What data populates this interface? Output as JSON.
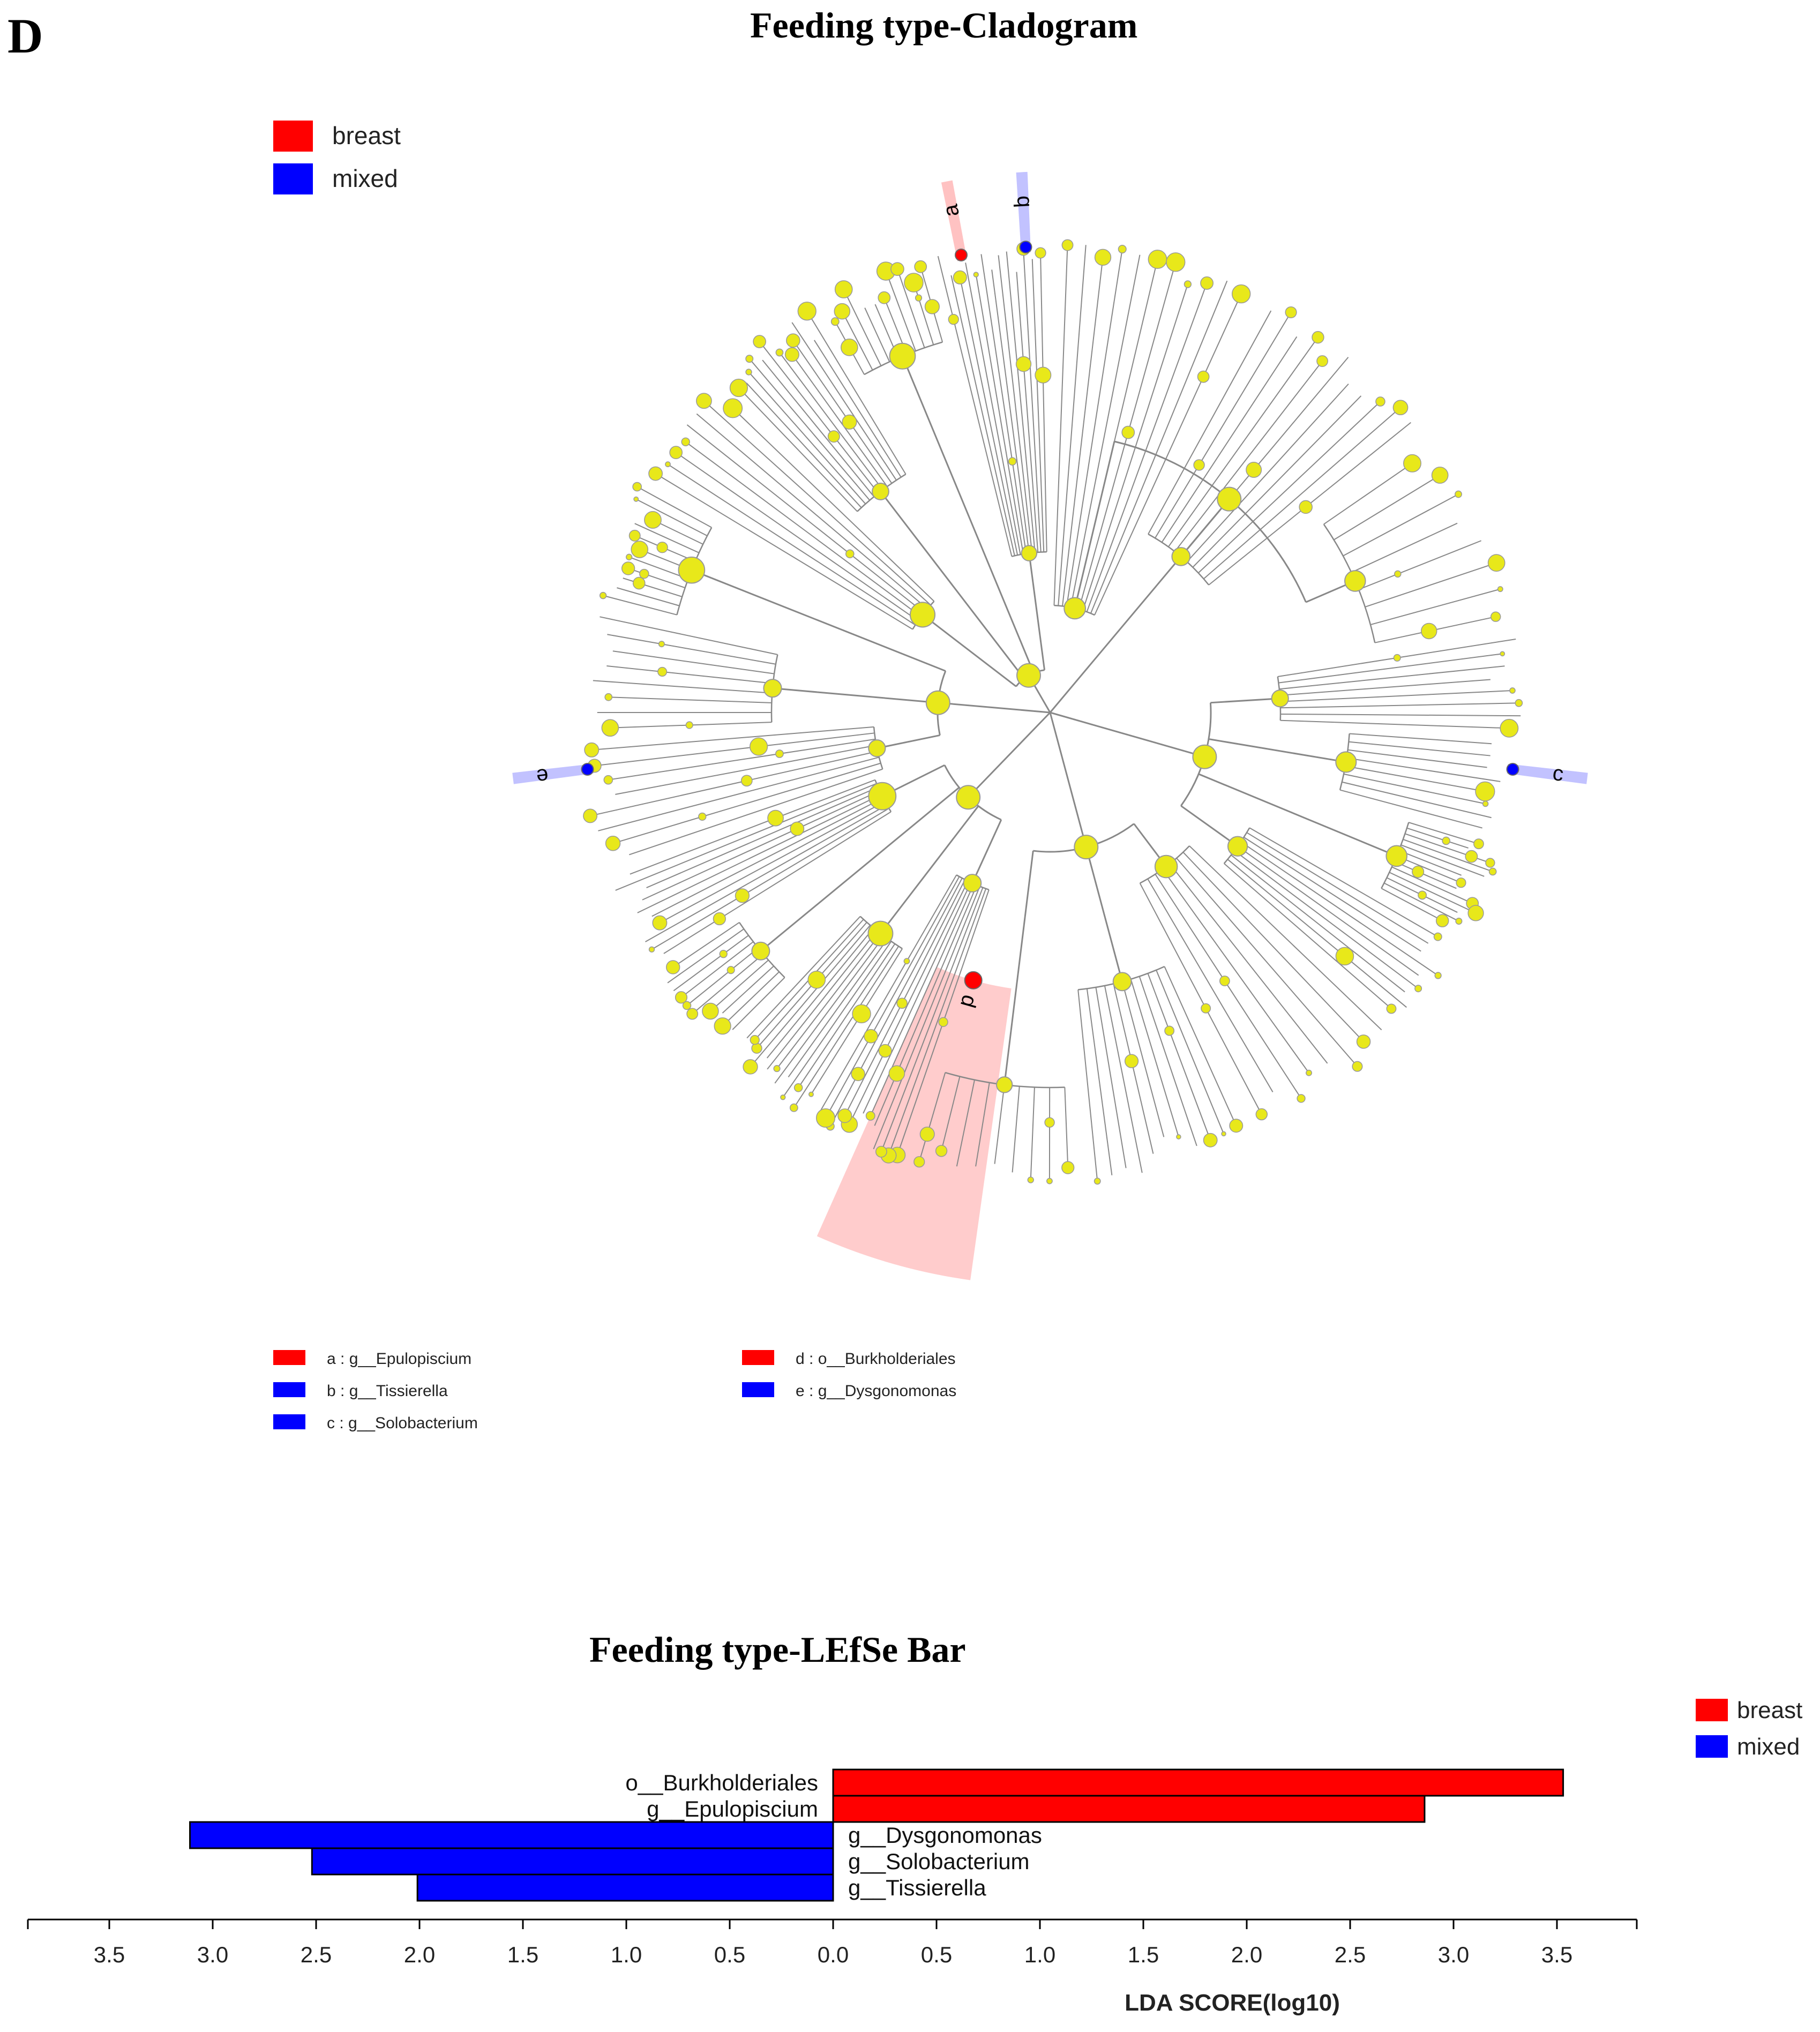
{
  "panel_label": "D",
  "cladogram": {
    "title": "Feeding type-Cladogram",
    "legend": [
      {
        "label": "breast",
        "color": "#ff0000"
      },
      {
        "label": "mixed",
        "color": "#0000ff"
      }
    ],
    "markers": [
      {
        "letter": "a",
        "group": "breast",
        "angle_deg": -11
      },
      {
        "letter": "b",
        "group": "mixed",
        "angle_deg": -3
      },
      {
        "letter": "c",
        "group": "mixed",
        "angle_deg": 97
      },
      {
        "letter": "d",
        "group": "breast",
        "angle_deg": 196
      },
      {
        "letter": "e",
        "group": "mixed",
        "angle_deg": 263
      }
    ],
    "taxa_key": [
      {
        "label": "a : g__Epulopiscium",
        "color": "#ff0000"
      },
      {
        "label": "b : g__Tissierella",
        "color": "#0000ff"
      },
      {
        "label": "c : g__Solobacterium",
        "color": "#0000ff"
      },
      {
        "label": "d : o__Burkholderiales",
        "color": "#ff0000"
      },
      {
        "label": "e : g__Dysgonomonas",
        "color": "#0000ff"
      }
    ],
    "node_color": "#e8e81a",
    "branch_color": "#888888"
  },
  "chart_data": {
    "type": "bar",
    "title": "Feeding type-LEfSe Bar",
    "xlabel": "LDA SCORE(log10)",
    "ylabel": "",
    "xlim": [
      -3.9,
      3.9
    ],
    "ticks": [
      -3.5,
      -3.0,
      -2.5,
      -2.0,
      -1.5,
      -1.0,
      -0.5,
      0.0,
      0.5,
      1.0,
      1.5,
      2.0,
      2.5,
      3.0,
      3.5
    ],
    "tick_labels": [
      "3.5",
      "3.0",
      "2.5",
      "2.0",
      "1.5",
      "1.0",
      "0.5",
      "0.0",
      "0.5",
      "1.0",
      "1.5",
      "2.0",
      "2.5",
      "3.0",
      "3.5"
    ],
    "legend": [
      {
        "label": "breast",
        "color": "#ff0000"
      },
      {
        "label": "mixed",
        "color": "#0000ff"
      }
    ],
    "bars": [
      {
        "label": "o__Burkholderiales",
        "value": 3.53,
        "group": "breast"
      },
      {
        "label": "g__Epulopiscium",
        "value": 2.86,
        "group": "breast"
      },
      {
        "label": "g__Dysgonomonas",
        "value": -3.11,
        "group": "mixed"
      },
      {
        "label": "g__Solobacterium",
        "value": -2.52,
        "group": "mixed"
      },
      {
        "label": "g__Tissierella",
        "value": -2.01,
        "group": "mixed"
      }
    ]
  }
}
